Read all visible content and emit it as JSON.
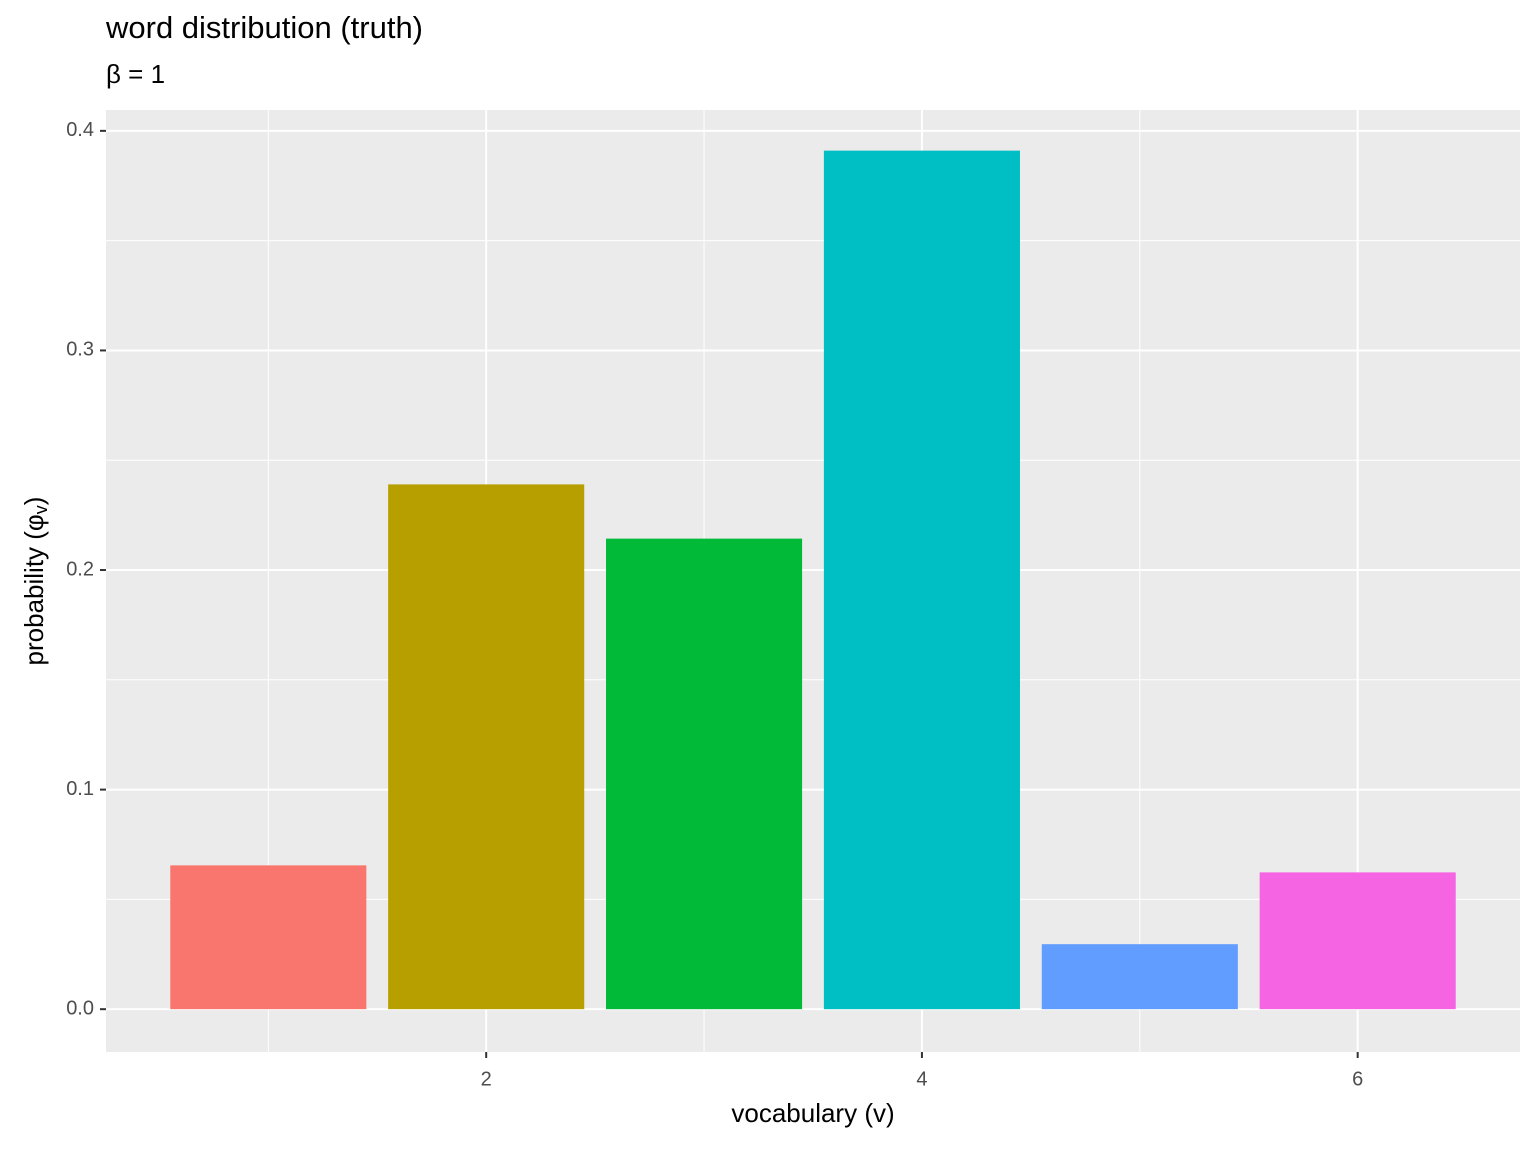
{
  "chart_data": {
    "type": "bar",
    "title": "word distribution (truth)",
    "subtitle": "β = 1",
    "x_label": "vocabulary (v)",
    "y_label": [
      "probability (φ",
      "v",
      ")"
    ],
    "x": [
      1,
      2,
      3,
      4,
      5,
      6
    ],
    "values": [
      0.0655,
      0.239,
      0.2143,
      0.391,
      0.0296,
      0.0623
    ],
    "colors": [
      "#F8766D",
      "#B79F00",
      "#00BA38",
      "#00BFC4",
      "#619CFF",
      "#F564E3"
    ],
    "xlim": [
      0.255,
      6.745
    ],
    "xticks": [
      2,
      4,
      6
    ],
    "ylim": [
      -0.0195,
      0.4095
    ],
    "yticks": [
      {
        "value": 0,
        "label": "0.0"
      },
      0.1,
      0.2,
      0.3,
      0.4
    ],
    "grid": true
  }
}
